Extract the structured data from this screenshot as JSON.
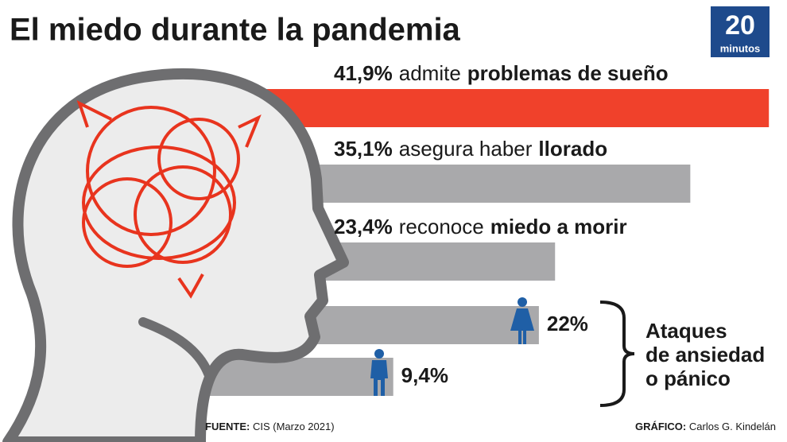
{
  "chart_data": {
    "type": "bar",
    "title": "El miedo durante la pandemia",
    "values": [
      41.9,
      35.1,
      23.4,
      22,
      9.4
    ],
    "value_labels": [
      "41,9%",
      "35,1%",
      "23,4%",
      "22%",
      "9,4%"
    ],
    "descriptions": [
      [
        "admite",
        "problemas de sueño"
      ],
      [
        "asegura haber",
        "llorado"
      ],
      [
        "reconoce",
        "miedo a morir"
      ],
      null,
      null
    ],
    "colors": [
      "#f0412b",
      "#a9a9ab",
      "#a9a9ab",
      "#a9a9ab",
      "#a9a9ab"
    ],
    "annotation": [
      "Ataques",
      "de ansiedad",
      "o pánico"
    ],
    "source": {
      "label": "FUENTE:",
      "text": "CIS (Marzo 2021)"
    },
    "credit": {
      "label": "GRÁFICO:",
      "text": "Carlos G. Kindelán"
    },
    "logo": {
      "number": "20",
      "word": "minutos"
    }
  }
}
